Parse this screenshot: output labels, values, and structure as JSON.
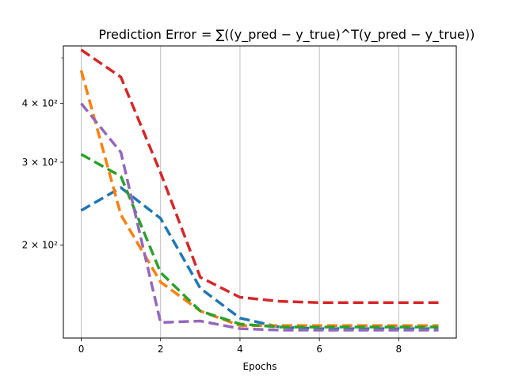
{
  "chart_data": {
    "type": "line",
    "title": "Prediction Error",
    "title_formula": "= ∑((y_pred − y_true)^T(y_pred − y_true))",
    "xlabel": "Epochs",
    "ylabel": "",
    "x": [
      0,
      1,
      2,
      3,
      4,
      5,
      6,
      7,
      8,
      9
    ],
    "xlim": [
      -0.45,
      9.45
    ],
    "xticks": [
      0,
      2,
      4,
      6,
      8
    ],
    "yscale": "log",
    "ylim": [
      127,
      530
    ],
    "yticks": [
      {
        "value": 200,
        "label": "2 × 10²"
      },
      {
        "value": 300,
        "label": "3 × 10²"
      },
      {
        "value": 400,
        "label": "4 × 10²"
      }
    ],
    "grid": "x-only",
    "line_style": "dashed",
    "series": [
      {
        "color": "#1f77b4",
        "values": [
          237,
          265,
          228,
          162,
          140,
          134,
          133,
          133,
          133,
          133
        ]
      },
      {
        "color": "#ff7f0e",
        "values": [
          470,
          232,
          167,
          145,
          135,
          135,
          135,
          135,
          135,
          135
        ]
      },
      {
        "color": "#2ca02c",
        "values": [
          312,
          280,
          175,
          145,
          136,
          134,
          134,
          134,
          134,
          134
        ]
      },
      {
        "color": "#d62728",
        "values": [
          520,
          455,
          285,
          171,
          155,
          152,
          151,
          151,
          151,
          151
        ]
      },
      {
        "color": "#9467bd",
        "values": [
          400,
          315,
          137,
          138,
          133,
          132,
          132,
          132,
          132,
          132
        ]
      }
    ]
  }
}
